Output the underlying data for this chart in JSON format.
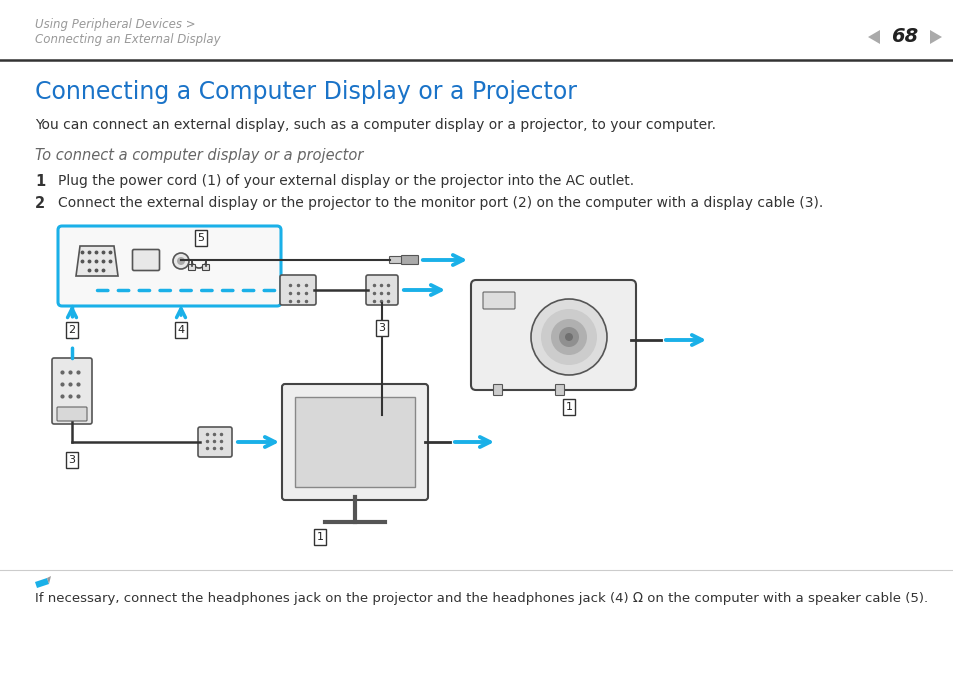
{
  "bg_color": "#ffffff",
  "header_line1": "Using Peripheral Devices >",
  "header_line2": "Connecting an External Display",
  "page_num": "68",
  "title": "Connecting a Computer Display or a Projector",
  "title_color": "#1a73c8",
  "body": "You can connect an external display, such as a computer display or a projector, to your computer.",
  "subtitle": "To connect a computer display or a projector",
  "step1": "Plug the power cord (1) of your external display or the projector into the AC outlet.",
  "step2": "Connect the external display or the projector to the monitor port (2) on the computer with a display cable (3).",
  "note": "If necessary, connect the headphones jack on the projector and the headphones jack (4) Ω on the computer with a speaker cable (5).",
  "arrow_color": "#1ab0e8",
  "header_gray": "#999999",
  "text_dark": "#333333",
  "note_gray": "#333333",
  "border_color": "#222222"
}
